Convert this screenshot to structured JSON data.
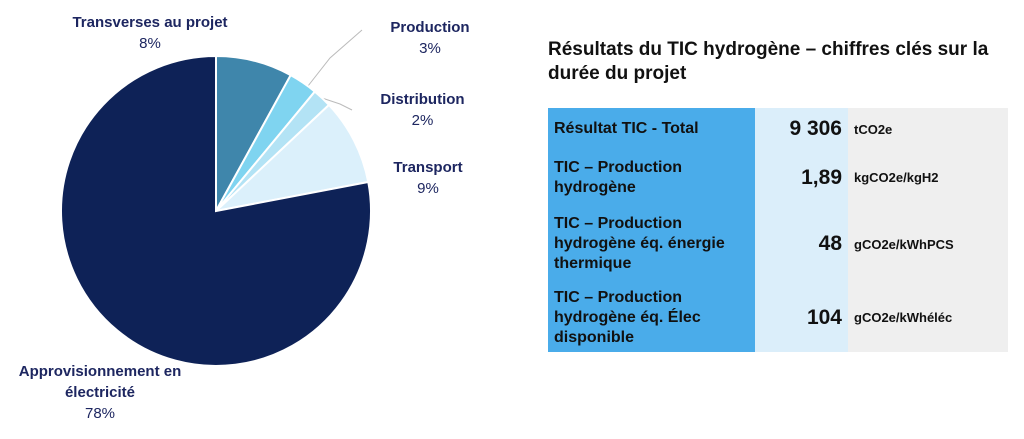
{
  "chart_data": {
    "type": "pie",
    "categories": [
      "Transverses au projet",
      "Production",
      "Distribution",
      "Transport",
      "Approvisionnement en électricité"
    ],
    "values": [
      8,
      3,
      2,
      9,
      78
    ],
    "value_labels": [
      "8%",
      "3%",
      "2%",
      "9%",
      "78%"
    ],
    "colors": [
      "#3f86ab",
      "#7fd4f0",
      "#b3e3f5",
      "#dbf0fb",
      "#0e2257"
    ]
  },
  "table": {
    "title": "Résultats du TIC hydrogène – chiffres clés sur la durée du projet",
    "rows": [
      [
        "Résultat TIC - Total",
        "9 306",
        "tCO2e"
      ],
      [
        "TIC – Production hydrogène",
        "1,89",
        "kgCO2e/kgH2"
      ],
      [
        "TIC – Production hydrogène éq. énergie thermique",
        "48",
        "gCO2e/kWhPCS"
      ],
      [
        "TIC – Production hydrogène éq. Élec disponible",
        "104",
        "gCO2e/kWhéléc"
      ]
    ]
  }
}
